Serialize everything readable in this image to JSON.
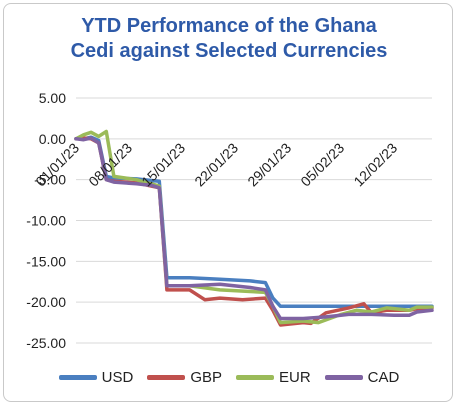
{
  "chart_data": {
    "type": "line",
    "title_lines": [
      "YTD Performance of the Ghana",
      "Cedi against Selected Currencies"
    ],
    "title_color": "#2e5aa8",
    "xlabel": "",
    "ylabel": "",
    "ylim": [
      -25,
      5
    ],
    "yticks": [
      5,
      0,
      -5,
      -10,
      -15,
      -20,
      -25
    ],
    "ytick_labels": [
      "5.00",
      "0.00",
      "-5.00",
      "-10.00",
      "-15.00",
      "-20.00",
      "-25.00"
    ],
    "x_start": "2023-01-01",
    "x_end": "2023-02-17",
    "xtick_dates": [
      "2023-01-01",
      "2023-01-08",
      "2023-01-15",
      "2023-01-22",
      "2023-01-29",
      "2023-02-05",
      "2023-02-12"
    ],
    "xtick_labels": [
      "01/01/23",
      "08/01/23",
      "15/01/23",
      "22/01/23",
      "29/01/23",
      "05/02/23",
      "12/02/23"
    ],
    "grid": true,
    "legend_position": "bottom",
    "series": [
      {
        "name": "USD",
        "color": "#4a7fc0",
        "points": [
          [
            "2023-01-01",
            0.0
          ],
          [
            "2023-01-02",
            0.0
          ],
          [
            "2023-01-03",
            0.2
          ],
          [
            "2023-01-04",
            -0.2
          ],
          [
            "2023-01-05",
            -4.6
          ],
          [
            "2023-01-06",
            -4.8
          ],
          [
            "2023-01-09",
            -4.9
          ],
          [
            "2023-01-10",
            -5.0
          ],
          [
            "2023-01-11",
            -5.1
          ],
          [
            "2023-01-12",
            -5.2
          ],
          [
            "2023-01-13",
            -17.0
          ],
          [
            "2023-01-16",
            -17.0
          ],
          [
            "2023-01-20",
            -17.2
          ],
          [
            "2023-01-24",
            -17.4
          ],
          [
            "2023-01-26",
            -17.6
          ],
          [
            "2023-01-27",
            -19.5
          ],
          [
            "2023-01-28",
            -20.5
          ],
          [
            "2023-01-31",
            -20.5
          ],
          [
            "2023-02-03",
            -20.5
          ],
          [
            "2023-02-06",
            -20.5
          ],
          [
            "2023-02-09",
            -20.5
          ],
          [
            "2023-02-12",
            -20.5
          ],
          [
            "2023-02-15",
            -20.5
          ],
          [
            "2023-02-17",
            -20.5
          ]
        ]
      },
      {
        "name": "GBP",
        "color": "#c0504d",
        "points": [
          [
            "2023-01-01",
            0.0
          ],
          [
            "2023-01-02",
            0.1
          ],
          [
            "2023-01-03",
            0.0
          ],
          [
            "2023-01-04",
            -0.5
          ],
          [
            "2023-01-05",
            -5.0
          ],
          [
            "2023-01-06",
            -5.2
          ],
          [
            "2023-01-09",
            -5.4
          ],
          [
            "2023-01-10",
            -5.6
          ],
          [
            "2023-01-11",
            -5.8
          ],
          [
            "2023-01-12",
            -6.0
          ],
          [
            "2023-01-13",
            -18.5
          ],
          [
            "2023-01-16",
            -18.5
          ],
          [
            "2023-01-18",
            -19.7
          ],
          [
            "2023-01-20",
            -19.5
          ],
          [
            "2023-01-23",
            -19.7
          ],
          [
            "2023-01-26",
            -19.5
          ],
          [
            "2023-01-27",
            -21.0
          ],
          [
            "2023-01-28",
            -22.8
          ],
          [
            "2023-01-31",
            -22.5
          ],
          [
            "2023-02-01",
            -22.6
          ],
          [
            "2023-02-03",
            -21.3
          ],
          [
            "2023-02-06",
            -20.7
          ],
          [
            "2023-02-08",
            -20.2
          ],
          [
            "2023-02-09",
            -21.3
          ],
          [
            "2023-02-11",
            -21.0
          ],
          [
            "2023-02-14",
            -21.0
          ],
          [
            "2023-02-15",
            -20.8
          ],
          [
            "2023-02-17",
            -20.7
          ]
        ]
      },
      {
        "name": "EUR",
        "color": "#9bbb59",
        "points": [
          [
            "2023-01-01",
            0.0
          ],
          [
            "2023-01-02",
            0.5
          ],
          [
            "2023-01-03",
            0.8
          ],
          [
            "2023-01-04",
            0.3
          ],
          [
            "2023-01-05",
            0.9
          ],
          [
            "2023-01-06",
            -4.6
          ],
          [
            "2023-01-09",
            -5.0
          ],
          [
            "2023-01-10",
            -5.3
          ],
          [
            "2023-01-11",
            -5.5
          ],
          [
            "2023-01-12",
            -5.8
          ],
          [
            "2023-01-13",
            -18.0
          ],
          [
            "2023-01-16",
            -18.0
          ],
          [
            "2023-01-20",
            -18.5
          ],
          [
            "2023-01-24",
            -18.7
          ],
          [
            "2023-01-26",
            -18.8
          ],
          [
            "2023-01-27",
            -20.5
          ],
          [
            "2023-01-28",
            -22.5
          ],
          [
            "2023-01-31",
            -22.3
          ],
          [
            "2023-02-02",
            -22.5
          ],
          [
            "2023-02-05",
            -21.5
          ],
          [
            "2023-02-07",
            -21.0
          ],
          [
            "2023-02-09",
            -21.2
          ],
          [
            "2023-02-11",
            -20.7
          ],
          [
            "2023-02-14",
            -21.0
          ],
          [
            "2023-02-15",
            -20.6
          ],
          [
            "2023-02-17",
            -20.6
          ]
        ]
      },
      {
        "name": "CAD",
        "color": "#7f63a2",
        "points": [
          [
            "2023-01-01",
            0.0
          ],
          [
            "2023-01-02",
            -0.1
          ],
          [
            "2023-01-03",
            0.1
          ],
          [
            "2023-01-04",
            -0.5
          ],
          [
            "2023-01-05",
            -5.0
          ],
          [
            "2023-01-06",
            -5.3
          ],
          [
            "2023-01-09",
            -5.5
          ],
          [
            "2023-01-10",
            -5.6
          ],
          [
            "2023-01-11",
            -5.7
          ],
          [
            "2023-01-12",
            -6.0
          ],
          [
            "2023-01-13",
            -18.0
          ],
          [
            "2023-01-16",
            -18.0
          ],
          [
            "2023-01-20",
            -17.8
          ],
          [
            "2023-01-24",
            -18.2
          ],
          [
            "2023-01-26",
            -18.5
          ],
          [
            "2023-01-27",
            -20.5
          ],
          [
            "2023-01-28",
            -22.0
          ],
          [
            "2023-01-31",
            -22.0
          ],
          [
            "2023-02-03",
            -21.8
          ],
          [
            "2023-02-06",
            -21.5
          ],
          [
            "2023-02-09",
            -21.5
          ],
          [
            "2023-02-12",
            -21.6
          ],
          [
            "2023-02-14",
            -21.6
          ],
          [
            "2023-02-15",
            -21.2
          ],
          [
            "2023-02-17",
            -21.0
          ]
        ]
      }
    ]
  }
}
